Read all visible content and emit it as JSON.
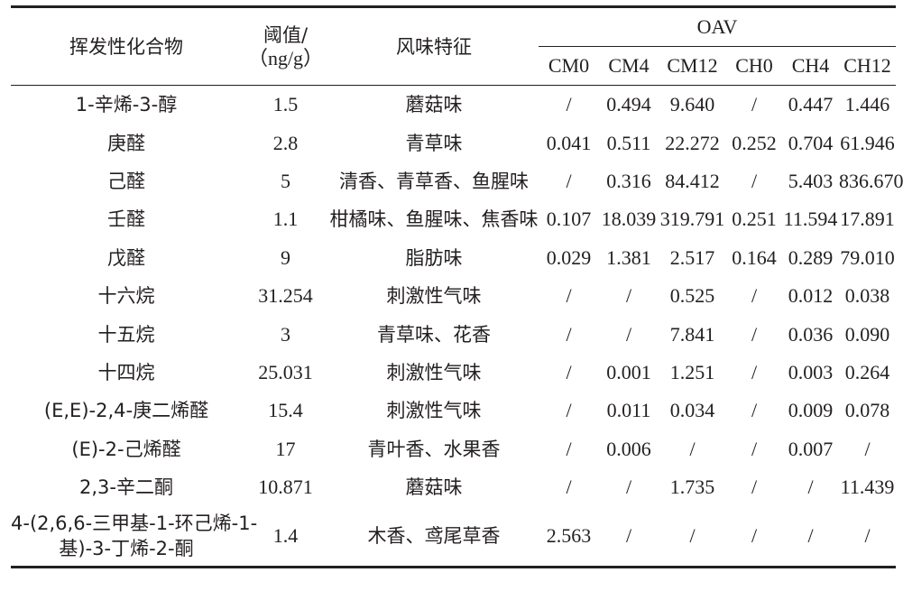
{
  "table": {
    "headers": {
      "compound": "挥发性化合物",
      "threshold_line1": "阈值/",
      "threshold_line2": "（ng/g）",
      "flavor": "风味特征",
      "oav": "OAV",
      "samples": [
        "CM0",
        "CM4",
        "CM12",
        "CH0",
        "CH4",
        "CH12"
      ]
    },
    "rows": [
      {
        "compound": "1-辛烯-3-醇",
        "threshold": "1.5",
        "flavor": "蘑菇味",
        "values": [
          "/",
          "0.494",
          "9.640",
          "/",
          "0.447",
          "1.446"
        ]
      },
      {
        "compound": "庚醛",
        "threshold": "2.8",
        "flavor": "青草味",
        "values": [
          "0.041",
          "0.511",
          "22.272",
          "0.252",
          "0.704",
          "61.946"
        ]
      },
      {
        "compound": "己醛",
        "threshold": "5",
        "flavor": "清香、青草香、鱼腥味",
        "values": [
          "/",
          "0.316",
          "84.412",
          "/",
          "5.403",
          "836.670"
        ]
      },
      {
        "compound": "壬醛",
        "threshold": "1.1",
        "flavor": "柑橘味、鱼腥味、焦香味",
        "values": [
          "0.107",
          "18.039",
          "319.791",
          "0.251",
          "11.594",
          "17.891"
        ]
      },
      {
        "compound": "戊醛",
        "threshold": "9",
        "flavor": "脂肪味",
        "values": [
          "0.029",
          "1.381",
          "2.517",
          "0.164",
          "0.289",
          "79.010"
        ]
      },
      {
        "compound": "十六烷",
        "threshold": "31.254",
        "flavor": "刺激性气味",
        "values": [
          "/",
          "/",
          "0.525",
          "/",
          "0.012",
          "0.038"
        ]
      },
      {
        "compound": "十五烷",
        "threshold": "3",
        "flavor": "青草味、花香",
        "values": [
          "/",
          "/",
          "7.841",
          "/",
          "0.036",
          "0.090"
        ]
      },
      {
        "compound": "十四烷",
        "threshold": "25.031",
        "flavor": "刺激性气味",
        "values": [
          "/",
          "0.001",
          "1.251",
          "/",
          "0.003",
          "0.264"
        ]
      },
      {
        "compound": "(E,E)-2,4-庚二烯醛",
        "threshold": "15.4",
        "flavor": "刺激性气味",
        "values": [
          "/",
          "0.011",
          "0.034",
          "/",
          "0.009",
          "0.078"
        ]
      },
      {
        "compound": "(E)-2-己烯醛",
        "threshold": "17",
        "flavor": "青叶香、水果香",
        "values": [
          "/",
          "0.006",
          "/",
          "/",
          "0.007",
          "/"
        ]
      },
      {
        "compound": "2,3-辛二酮",
        "threshold": "10.871",
        "flavor": "蘑菇味",
        "values": [
          "/",
          "/",
          "1.735",
          "/",
          "/",
          "11.439"
        ]
      },
      {
        "compound_line1": "4-(2,6,6-三甲基-1-环己烯-1-",
        "compound_line2": "基)-3-丁烯-2-酮",
        "threshold": "1.4",
        "flavor": "木香、鸢尾草香",
        "values": [
          "2.563",
          "/",
          "/",
          "/",
          "/",
          "/"
        ]
      }
    ]
  }
}
